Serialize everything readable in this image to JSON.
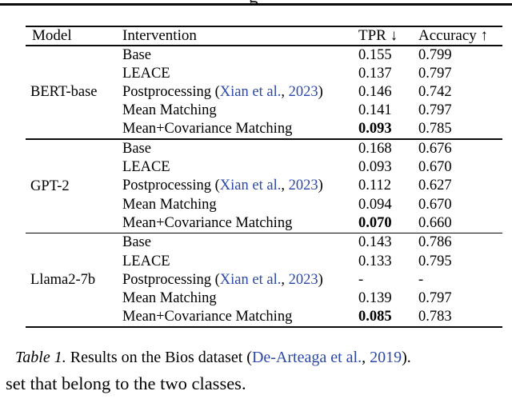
{
  "page": {
    "clipped_text_fragment": "g"
  },
  "colors": {
    "link_blue": "#2b48a7",
    "text": "#000000",
    "rule": "#0b0b0b"
  },
  "table": {
    "headers": {
      "model": "Model",
      "intervention": "Intervention",
      "tpr": "TPR ↓",
      "accuracy": "Accuracy ↑"
    },
    "sections": [
      {
        "model": "BERT-base",
        "rows": [
          {
            "intervention": "Base",
            "tpr": "0.155",
            "accuracy": "0.799"
          },
          {
            "intervention": "LEACE",
            "tpr": "0.137",
            "accuracy": "0.797"
          },
          {
            "intervention_parts": {
              "prefix": "Postprocessing (",
              "authors": "Xian et al.",
              "sep": ", ",
              "year": "2023",
              "suffix": ")"
            },
            "tpr": "0.146",
            "accuracy": "0.742"
          },
          {
            "intervention": "Mean Matching",
            "tpr": "0.141",
            "accuracy": "0.797"
          },
          {
            "intervention": "Mean+Covariance Matching",
            "tpr": "0.093",
            "accuracy": "0.785"
          }
        ]
      },
      {
        "model": "GPT-2",
        "rows": [
          {
            "intervention": "Base",
            "tpr": "0.168",
            "accuracy": "0.676"
          },
          {
            "intervention": "LEACE",
            "tpr": "0.093",
            "accuracy": "0.670"
          },
          {
            "intervention_parts": {
              "prefix": "Postprocessing (",
              "authors": "Xian et al.",
              "sep": ", ",
              "year": "2023",
              "suffix": ")"
            },
            "tpr": "0.112",
            "accuracy": "0.627"
          },
          {
            "intervention": "Mean Matching",
            "tpr": "0.094",
            "accuracy": "0.670"
          },
          {
            "intervention": "Mean+Covariance Matching",
            "tpr": "0.070",
            "accuracy": "0.660"
          }
        ]
      },
      {
        "model": "Llama2-7b",
        "rows": [
          {
            "intervention": "Base",
            "tpr": "0.143",
            "accuracy": "0.786"
          },
          {
            "intervention": "LEACE",
            "tpr": "0.133",
            "accuracy": "0.795"
          },
          {
            "intervention_parts": {
              "prefix": "Postprocessing (",
              "authors": "Xian et al.",
              "sep": ", ",
              "year": "2023",
              "suffix": ")"
            },
            "tpr": "-",
            "accuracy": "-"
          },
          {
            "intervention": "Mean Matching",
            "tpr": "0.139",
            "accuracy": "0.797"
          },
          {
            "intervention": "Mean+Covariance Matching",
            "tpr": "0.085",
            "accuracy": "0.783"
          }
        ]
      }
    ]
  },
  "caption": {
    "label": "Table 1.",
    "before": " Results on the Bios dataset (",
    "cite_authors": "De-Arteaga et al.",
    "cite_sep": ", ",
    "cite_year": "2019",
    "after": ")."
  },
  "body_fragment": "set that belong to the two classes."
}
